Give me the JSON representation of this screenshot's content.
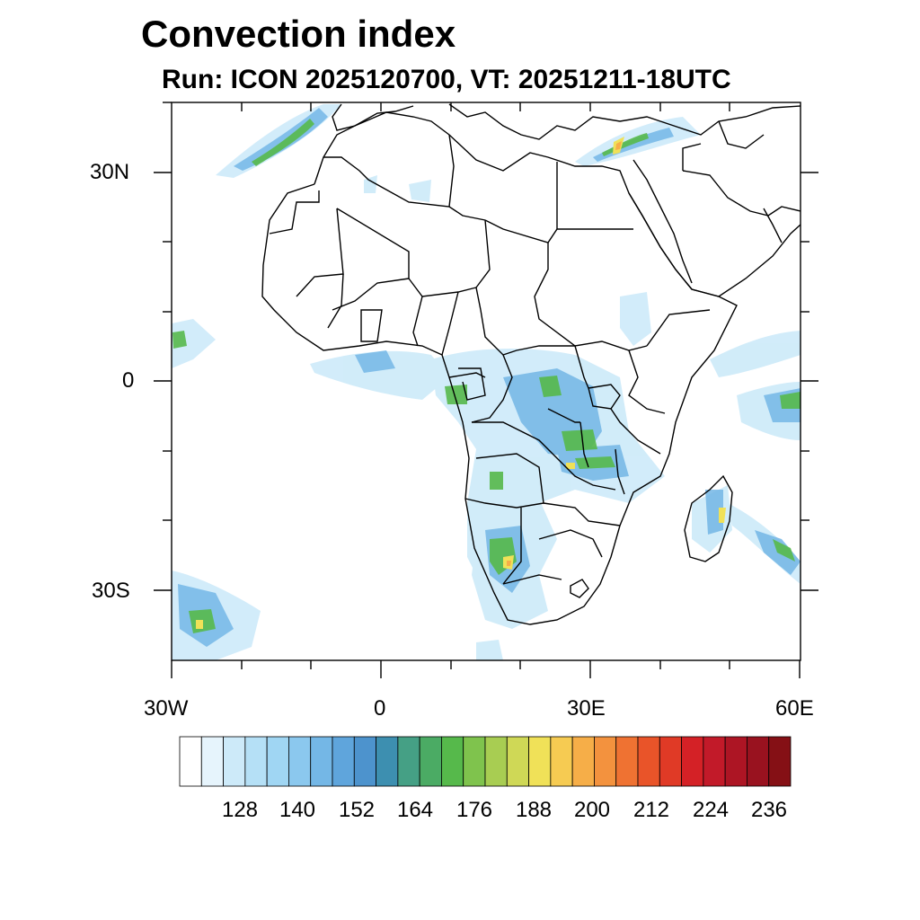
{
  "title": "Convection index",
  "subtitle": "Run: ICON 2025120700,  VT: 20251211-18UTC",
  "axes": {
    "lat_labels": [
      "30N",
      "0",
      "30S"
    ],
    "lon_labels": [
      "30W",
      "0",
      "30E",
      "60E"
    ],
    "lon_range": [
      -30,
      60
    ],
    "lat_range": [
      -40,
      40
    ]
  },
  "colorbar": {
    "colors": [
      "#ffffff",
      "#e6f4fc",
      "#cdeaf9",
      "#b5e0f6",
      "#a0d6f3",
      "#8bc8ee",
      "#74b7e6",
      "#5fa5dc",
      "#4d93cd",
      "#3d8fb0",
      "#45a085",
      "#4bab64",
      "#56b94b",
      "#7fc34d",
      "#a8cd52",
      "#cfd856",
      "#f0e158",
      "#f6cb52",
      "#f6ae48",
      "#f3923e",
      "#ef7232",
      "#e95429",
      "#e03a26",
      "#d42126",
      "#c21a29",
      "#ad1524",
      "#99121f",
      "#851015"
    ],
    "labels": [
      "128",
      "140",
      "152",
      "164",
      "176",
      "188",
      "200",
      "212",
      "224",
      "236"
    ]
  }
}
